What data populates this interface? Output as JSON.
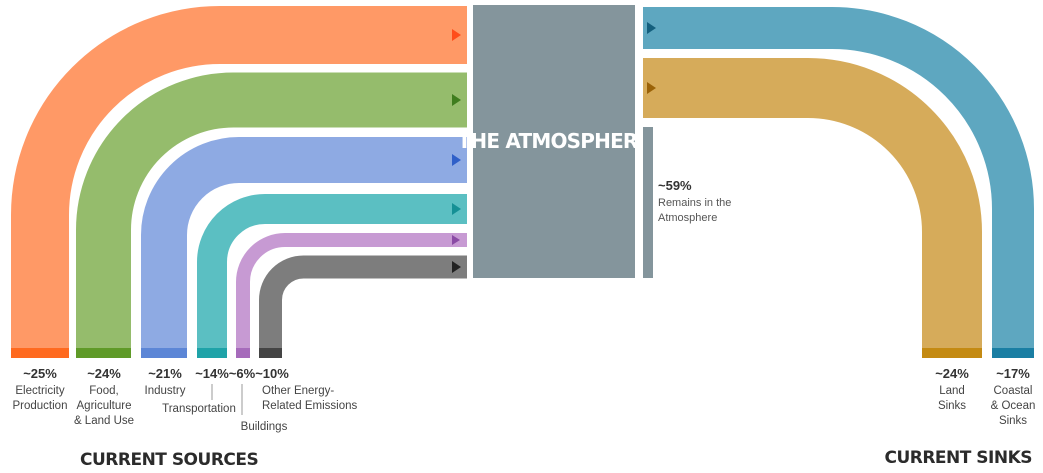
{
  "diagram_title": "",
  "atmosphere": {
    "label": "THE ATMOSPHERE",
    "color": "#84959c",
    "remains": {
      "percent": "~59%",
      "label_line1": "Remains in the",
      "label_line2": "Atmosphere"
    }
  },
  "sources": {
    "heading": "CURRENT SOURCES",
    "items": [
      {
        "id": "electricity",
        "percent": "~25%",
        "label_lines": [
          "Electricity",
          "Production"
        ],
        "color": "#ff9966",
        "base_color": "#ff6a1f",
        "arrow_color": "#ff4d1a"
      },
      {
        "id": "food",
        "percent": "~24%",
        "label_lines": [
          "Food,",
          "Agriculture",
          "& Land Use"
        ],
        "color": "#95bc6c",
        "base_color": "#5f9a28",
        "arrow_color": "#3f7d1e"
      },
      {
        "id": "industry",
        "percent": "~21%",
        "label_lines": [
          "Industry"
        ],
        "color": "#8eaae3",
        "base_color": "#5c86d6",
        "arrow_color": "#2f5fc8"
      },
      {
        "id": "transportation",
        "percent": "~14%",
        "label_lines": [
          "Transportation"
        ],
        "color": "#5bbfc2",
        "base_color": "#1fa3a8",
        "arrow_color": "#159095"
      },
      {
        "id": "buildings",
        "percent": "~6%",
        "label_lines": [
          "Buildings"
        ],
        "color": "#c79ad3",
        "base_color": "#a66bbb",
        "arrow_color": "#8a4aa5"
      },
      {
        "id": "other",
        "percent": "~10%",
        "label_lines": [
          "Other Energy-",
          "Related Emissions"
        ],
        "color": "#7d7d7d",
        "base_color": "#444444",
        "arrow_color": "#222222"
      }
    ]
  },
  "sinks": {
    "heading": "CURRENT SINKS",
    "items": [
      {
        "id": "land",
        "percent": "~24%",
        "label_lines": [
          "Land",
          "Sinks"
        ],
        "color": "#d6ab5a",
        "base_color": "#c48a12",
        "arrow_color": "#9a6208"
      },
      {
        "id": "ocean",
        "percent": "~17%",
        "label_lines": [
          "Coastal",
          "& Ocean",
          "Sinks"
        ],
        "color": "#5ea7c0",
        "base_color": "#1a7ea3",
        "arrow_color": "#145f7d"
      }
    ]
  }
}
